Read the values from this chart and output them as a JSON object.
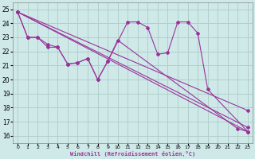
{
  "xlabel": "Windchill (Refroidissement éolien,°C)",
  "bg_color": "#cfe9e9",
  "plot_bg_color": "#cfe9e9",
  "line_color": "#993399",
  "grid_color": "#b0d0c8",
  "xlim": [
    -0.5,
    23.5
  ],
  "ylim": [
    15.5,
    25.5
  ],
  "xticks": [
    0,
    1,
    2,
    3,
    4,
    5,
    6,
    7,
    8,
    9,
    10,
    11,
    12,
    13,
    14,
    15,
    16,
    17,
    18,
    19,
    20,
    21,
    22,
    23
  ],
  "yticks": [
    16,
    17,
    18,
    19,
    20,
    21,
    22,
    23,
    24,
    25
  ],
  "lines": [
    {
      "x": [
        0,
        1,
        2,
        3,
        4,
        5,
        6,
        7,
        8,
        9,
        11,
        12,
        13,
        14,
        15,
        16,
        17,
        18,
        19,
        23
      ],
      "y": [
        24.8,
        23.0,
        23.0,
        22.3,
        22.3,
        21.1,
        21.2,
        21.5,
        20.0,
        21.3,
        24.1,
        24.1,
        23.7,
        21.8,
        21.9,
        24.1,
        24.1,
        23.3,
        19.3,
        16.3
      ]
    },
    {
      "x": [
        0,
        1,
        2,
        3,
        4,
        5,
        6,
        7,
        8,
        9,
        10,
        22,
        23
      ],
      "y": [
        24.8,
        23.0,
        23.0,
        22.5,
        22.3,
        21.1,
        21.2,
        21.5,
        20.0,
        21.3,
        22.8,
        16.5,
        16.3
      ]
    },
    {
      "x": [
        0,
        23
      ],
      "y": [
        24.8,
        16.3
      ]
    },
    {
      "x": [
        0,
        23
      ],
      "y": [
        24.8,
        16.6
      ]
    },
    {
      "x": [
        0,
        23
      ],
      "y": [
        24.8,
        17.8
      ]
    }
  ]
}
